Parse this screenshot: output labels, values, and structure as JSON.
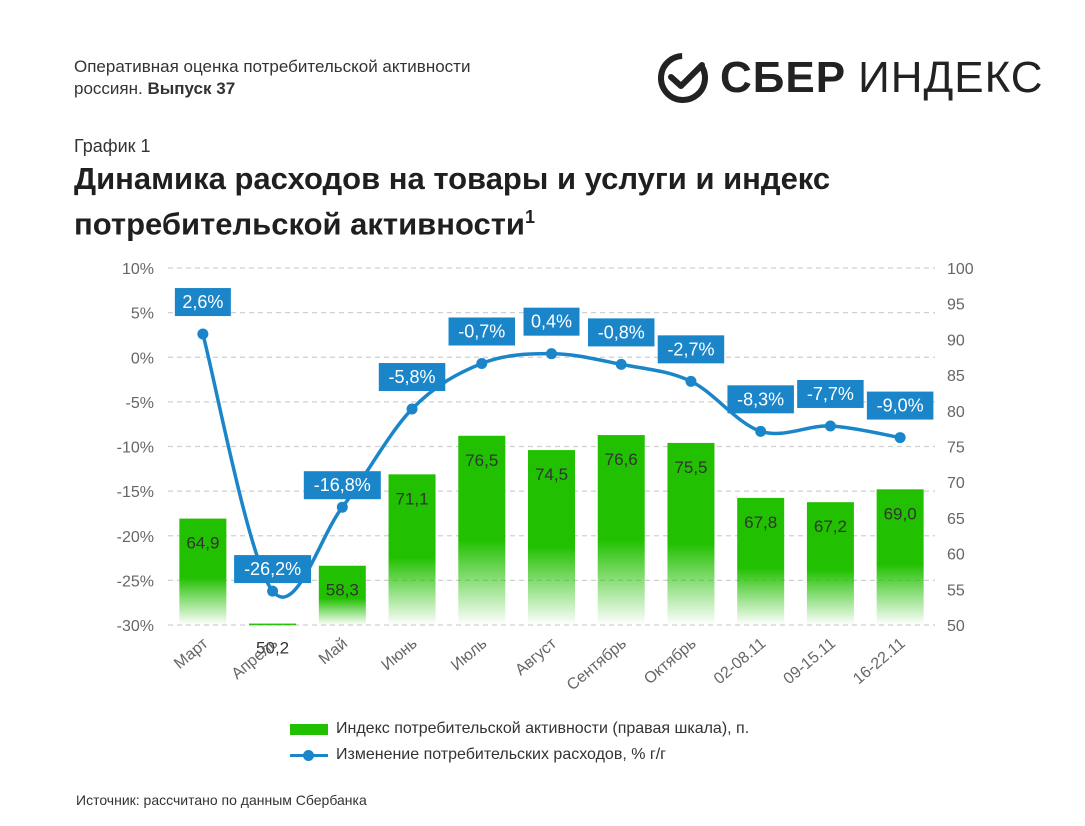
{
  "header": {
    "subtitle_line1": "Оперативная оценка потребительской активности",
    "subtitle_line2_prefix": "россиян. ",
    "subtitle_issue": "Выпуск 37",
    "brand_bold": "СБЕР",
    "brand_regular": "ИНДЕКС"
  },
  "figure_label": "График 1",
  "title": "Динамика расходов на товары и услуги и индекс потребительской активности",
  "title_footnote": "1",
  "chart_data": {
    "type": "bar+line",
    "categories": [
      "Март",
      "Апрель",
      "Май",
      "Июнь",
      "Июль",
      "Август",
      "Сентябрь",
      "Октябрь",
      "02-08.11",
      "09-15.11",
      "16-22.11"
    ],
    "series": [
      {
        "name": "Индекс потребительской активности (правая шкала), п.",
        "type": "bar",
        "axis": "right",
        "values": [
          64.9,
          50.2,
          58.3,
          71.1,
          76.5,
          74.5,
          76.6,
          75.5,
          67.8,
          67.2,
          69.0
        ],
        "labels": [
          "64,9",
          "50,2",
          "58,3",
          "71,1",
          "76,5",
          "74,5",
          "76,6",
          "75,5",
          "67,8",
          "67,2",
          "69,0"
        ],
        "color": "#21c000"
      },
      {
        "name": "Изменение потребительских расходов, % г/г",
        "type": "line",
        "axis": "left",
        "values": [
          2.6,
          -26.2,
          -16.8,
          -5.8,
          -0.7,
          0.4,
          -0.8,
          -2.7,
          -8.3,
          -7.7,
          -9.0
        ],
        "labels": [
          "2,6%",
          "-26,2%",
          "-16,8%",
          "-5,8%",
          "-0,7%",
          "0,4%",
          "-0,8%",
          "-2,7%",
          "-8,3%",
          "-7,7%",
          "-9,0%"
        ],
        "color": "#1a86c9"
      }
    ],
    "left_axis": {
      "range": [
        -30,
        10
      ],
      "ticks": [
        10,
        5,
        0,
        -5,
        -10,
        -15,
        -20,
        -25,
        -30
      ],
      "tick_labels": [
        "10%",
        "5%",
        "0%",
        "-5%",
        "-10%",
        "-15%",
        "-20%",
        "-25%",
        "-30%"
      ]
    },
    "right_axis": {
      "range": [
        50,
        100
      ],
      "ticks": [
        100,
        95,
        90,
        85,
        80,
        75,
        70,
        65,
        60,
        55,
        50
      ],
      "tick_labels": [
        "100",
        "95",
        "90",
        "85",
        "80",
        "75",
        "70",
        "65",
        "60",
        "55",
        "50"
      ]
    },
    "grid": "horizontal dashed",
    "legend_position": "bottom"
  },
  "legend": {
    "bar_label": "Индекс потребительской активности (правая шкала), п.",
    "line_label": "Изменение потребительских расходов, % г/г"
  },
  "source": "Источник: рассчитано по данным Сбербанка",
  "colors": {
    "bar": "#21c000",
    "line": "#1a86c9",
    "label_box": "#1a86c9",
    "grid": "#cfcfcf"
  }
}
